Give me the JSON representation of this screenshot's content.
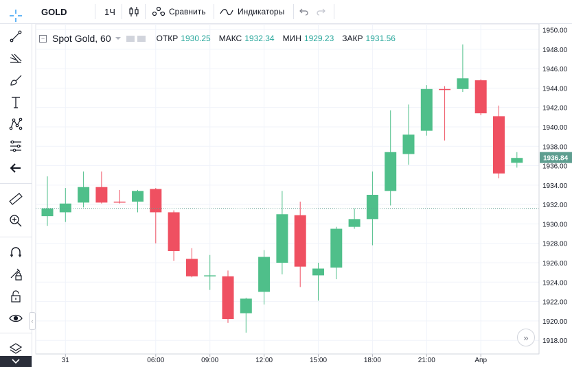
{
  "header": {
    "symbol": "GOLD",
    "interval": "1Ч",
    "compare_label": "Сравнить",
    "indicators_label": "Индикаторы"
  },
  "legend": {
    "title": "Spot Gold, 60",
    "open_label": "ОТКР",
    "open": "1930.25",
    "high_label": "МАКС",
    "high": "1932.34",
    "low_label": "МИН",
    "low": "1929.23",
    "close_label": "ЗАКР",
    "close": "1931.56"
  },
  "icons": {
    "sidebar": [
      "crosshair-icon",
      "trend-line-icon",
      "fib-tool-icon",
      "brush-icon",
      "text-icon",
      "pattern-icon",
      "prediction-icon",
      "back-arrow-icon",
      "ruler-icon",
      "zoom-in-icon",
      "magnet-icon",
      "lock-draw-icon",
      "lock-icon",
      "eye-icon",
      "layers-icon"
    ]
  },
  "colors": {
    "up": "#4fbf8a",
    "down": "#ef5061",
    "accent": "#2196f3",
    "price_tag": "#5e9e90"
  },
  "chart_data": {
    "type": "candlestick",
    "symbol": "Spot Gold",
    "interval": "60",
    "ylim": [
      1916.6,
      1950.6
    ],
    "y_ticks": [
      "1950.00",
      "1948.00",
      "1946.00",
      "1944.00",
      "1942.00",
      "1940.00",
      "1938.00",
      "1936.00",
      "1934.00",
      "1932.00",
      "1930.00",
      "1928.00",
      "1926.00",
      "1924.00",
      "1922.00",
      "1920.00",
      "1918.00"
    ],
    "x_tick_labels": [
      {
        "label": "31",
        "bar": 1
      },
      {
        "label": "06:00",
        "bar": 6
      },
      {
        "label": "09:00",
        "bar": 9
      },
      {
        "label": "12:00",
        "bar": 12
      },
      {
        "label": "15:00",
        "bar": 15
      },
      {
        "label": "18:00",
        "bar": 18
      },
      {
        "label": "21:00",
        "bar": 21
      },
      {
        "label": "Апр",
        "bar": 24
      }
    ],
    "current_price": "1936.84",
    "dotted_price": 1931.6,
    "candles": [
      {
        "o": 1930.8,
        "h": 1934.9,
        "l": 1929.8,
        "c": 1931.6
      },
      {
        "o": 1931.2,
        "h": 1933.7,
        "l": 1930.2,
        "c": 1932.1
      },
      {
        "o": 1932.2,
        "h": 1935.4,
        "l": 1931.7,
        "c": 1933.8
      },
      {
        "o": 1933.8,
        "h": 1935.4,
        "l": 1932.1,
        "c": 1932.2
      },
      {
        "o": 1932.3,
        "h": 1933.5,
        "l": 1932.1,
        "c": 1932.2
      },
      {
        "o": 1932.3,
        "h": 1933.5,
        "l": 1931.2,
        "c": 1933.4
      },
      {
        "o": 1933.6,
        "h": 1933.7,
        "l": 1928.0,
        "c": 1931.2
      },
      {
        "o": 1931.2,
        "h": 1931.4,
        "l": 1926.2,
        "c": 1927.2
      },
      {
        "o": 1926.4,
        "h": 1927.5,
        "l": 1924.5,
        "c": 1924.6
      },
      {
        "o": 1924.6,
        "h": 1926.8,
        "l": 1923.2,
        "c": 1924.7
      },
      {
        "o": 1924.6,
        "h": 1925.2,
        "l": 1919.8,
        "c": 1920.2
      },
      {
        "o": 1920.8,
        "h": 1922.4,
        "l": 1918.8,
        "c": 1922.3
      },
      {
        "o": 1923.0,
        "h": 1927.3,
        "l": 1921.7,
        "c": 1926.6
      },
      {
        "o": 1926.0,
        "h": 1933.4,
        "l": 1924.8,
        "c": 1931.0
      },
      {
        "o": 1930.9,
        "h": 1932.3,
        "l": 1923.5,
        "c": 1925.6
      },
      {
        "o": 1924.7,
        "h": 1926.0,
        "l": 1922.1,
        "c": 1925.4
      },
      {
        "o": 1925.5,
        "h": 1929.7,
        "l": 1924.3,
        "c": 1929.5
      },
      {
        "o": 1929.7,
        "h": 1931.6,
        "l": 1929.5,
        "c": 1930.5
      },
      {
        "o": 1930.5,
        "h": 1935.4,
        "l": 1927.8,
        "c": 1933.0
      },
      {
        "o": 1933.4,
        "h": 1941.7,
        "l": 1931.9,
        "c": 1937.4
      },
      {
        "o": 1937.2,
        "h": 1942.3,
        "l": 1936.1,
        "c": 1939.2
      },
      {
        "o": 1939.6,
        "h": 1944.3,
        "l": 1939.1,
        "c": 1943.9
      },
      {
        "o": 1943.9,
        "h": 1944.2,
        "l": 1938.6,
        "c": 1943.8
      },
      {
        "o": 1943.9,
        "h": 1948.5,
        "l": 1943.6,
        "c": 1945.0
      },
      {
        "o": 1944.8,
        "h": 1944.9,
        "l": 1941.2,
        "c": 1941.4
      },
      {
        "o": 1941.1,
        "h": 1942.2,
        "l": 1934.7,
        "c": 1935.2
      },
      {
        "o": 1936.3,
        "h": 1937.4,
        "l": 1935.8,
        "c": 1936.8
      }
    ]
  }
}
